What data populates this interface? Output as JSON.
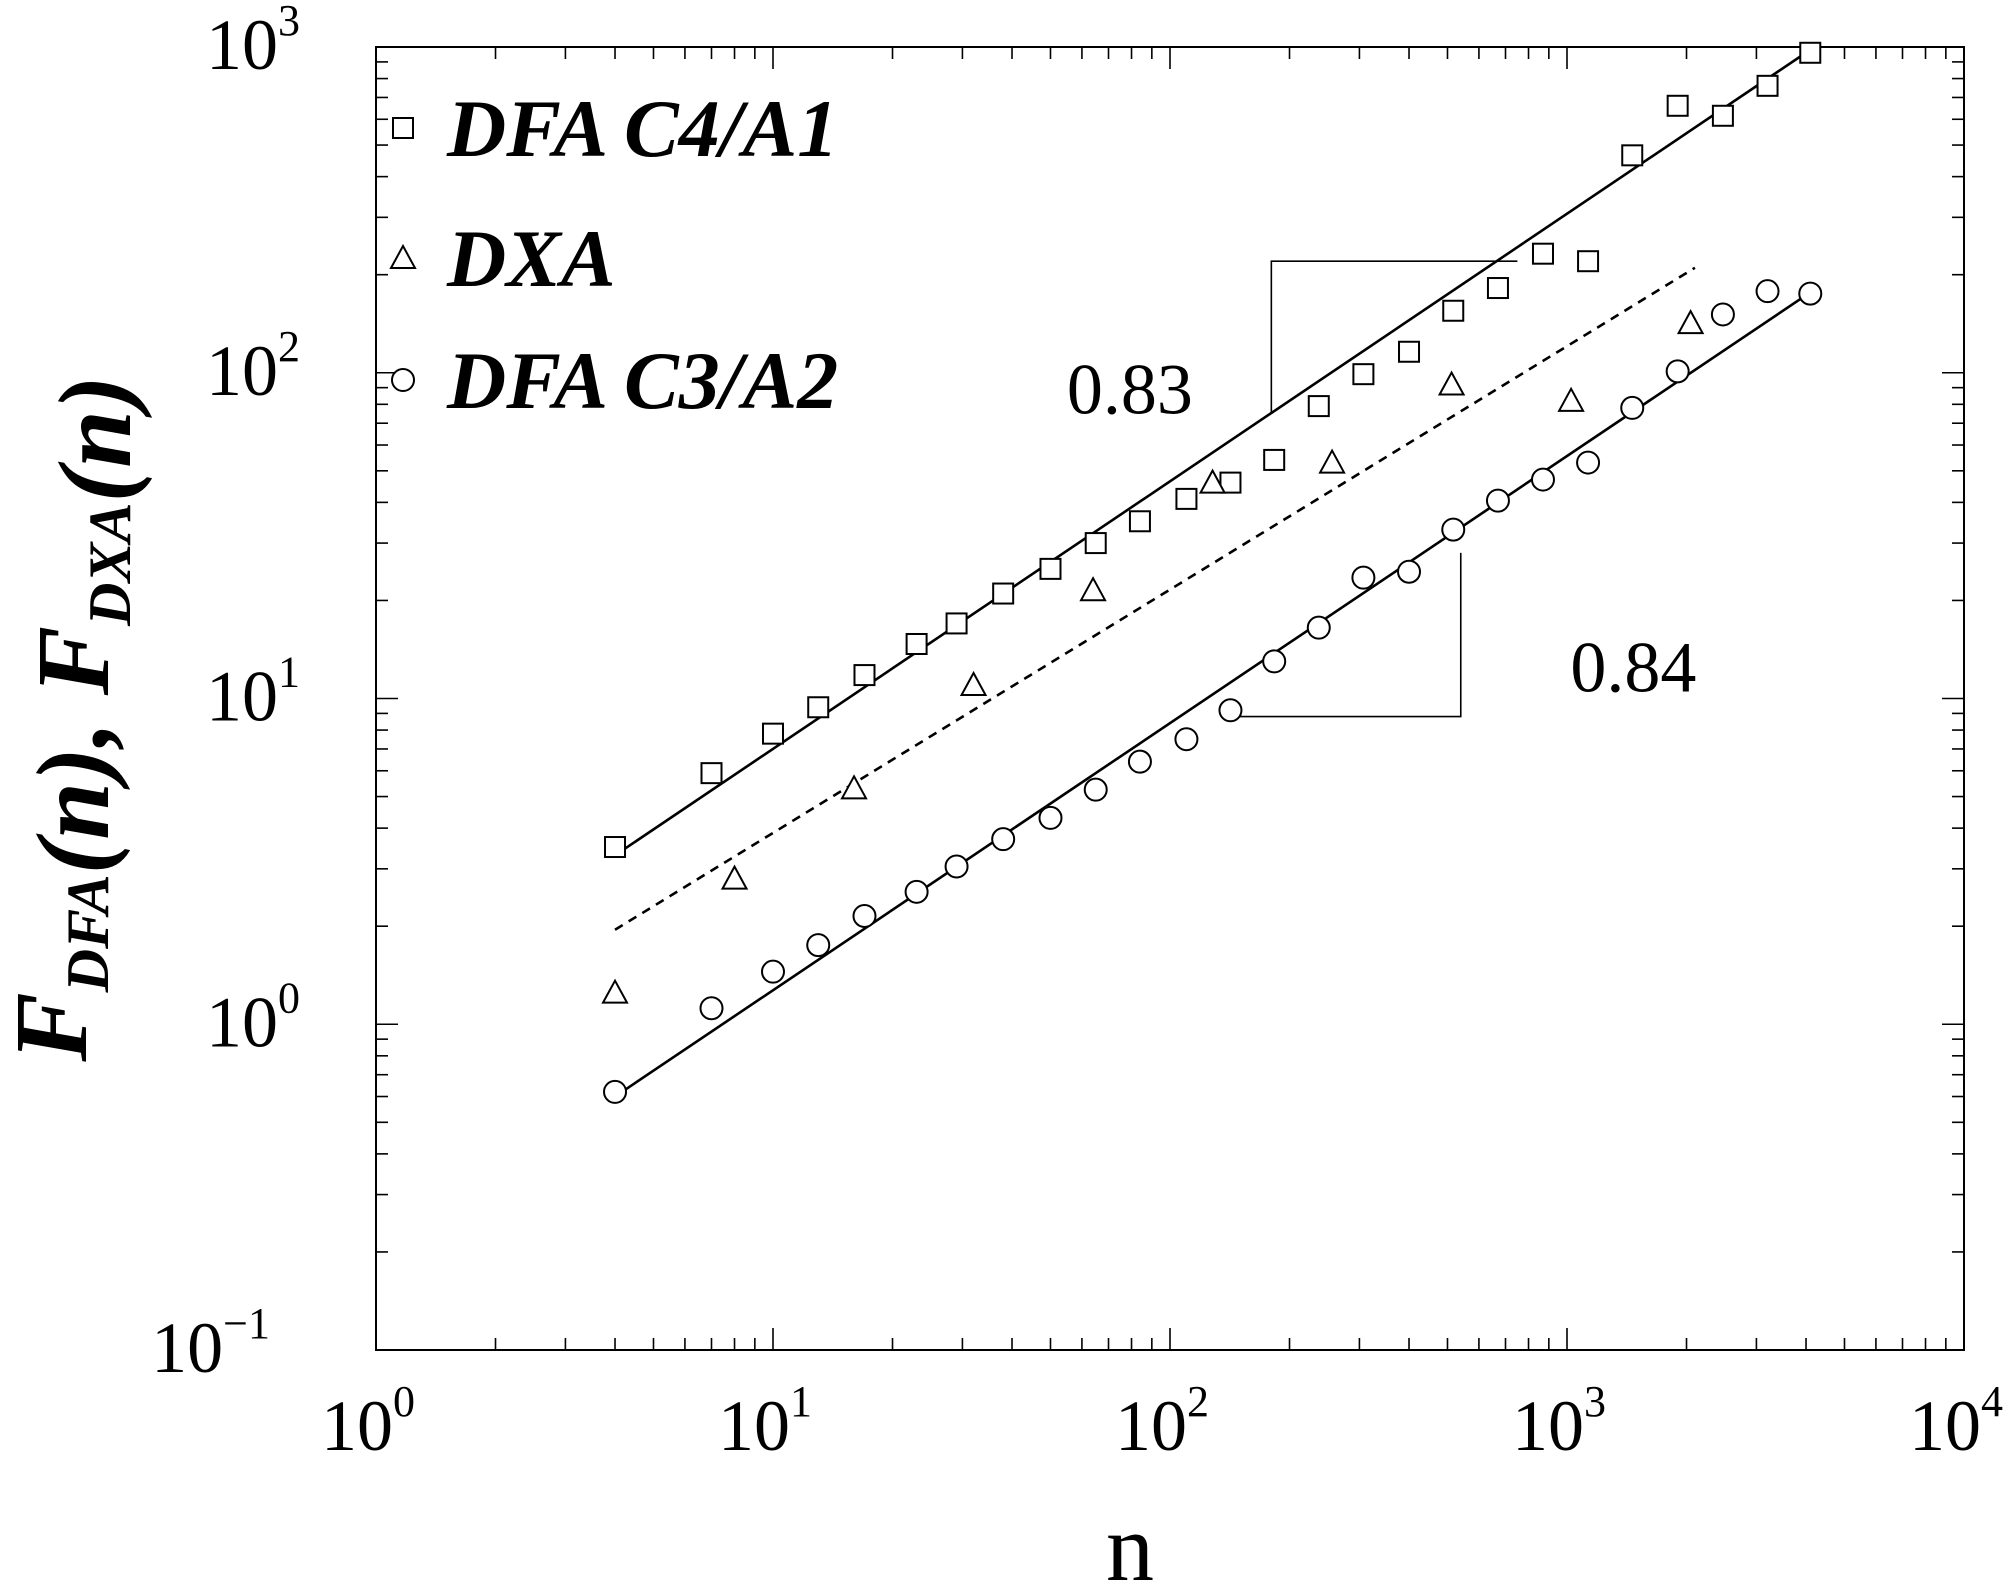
{
  "chart_data": {
    "type": "scatter",
    "xscale": "log",
    "yscale": "log",
    "xlim": [
      1,
      10000
    ],
    "ylim": [
      0.1,
      1000
    ],
    "xlabel": "n",
    "ylabel": {
      "parts": [
        {
          "text": "F",
          "sub": "DFA"
        },
        {
          "text": "(n), "
        },
        {
          "text": "F",
          "sub": "DXA"
        },
        {
          "text": "(n)"
        }
      ]
    },
    "x_ticks": [
      {
        "value": 1,
        "base": "10",
        "exp": "0"
      },
      {
        "value": 10,
        "base": "10",
        "exp": "1"
      },
      {
        "value": 100,
        "base": "10",
        "exp": "2"
      },
      {
        "value": 1000,
        "base": "10",
        "exp": "3"
      },
      {
        "value": 10000,
        "base": "10",
        "exp": "4"
      }
    ],
    "y_ticks": [
      {
        "value": 0.1,
        "base": "10",
        "exp": "−1"
      },
      {
        "value": 1,
        "base": "10",
        "exp": "0"
      },
      {
        "value": 10,
        "base": "10",
        "exp": "1"
      },
      {
        "value": 100,
        "base": "10",
        "exp": "2"
      },
      {
        "value": 1000,
        "base": "10",
        "exp": "3"
      }
    ],
    "legend_position": "top-left",
    "series": [
      {
        "name": "DFA C4/A1",
        "marker": "square",
        "x": [
          4,
          7,
          10,
          13,
          17,
          23,
          29,
          38,
          50,
          65,
          84,
          110,
          142,
          183,
          237,
          307,
          400,
          517,
          670,
          870,
          1130,
          1460,
          1900,
          2470,
          3200,
          4100
        ],
        "y": [
          3.5,
          5.9,
          7.8,
          9.4,
          11.8,
          14.7,
          17,
          21,
          25,
          30,
          35,
          41,
          46,
          54,
          79,
          99,
          116,
          155,
          182,
          232,
          220,
          465,
          660,
          615,
          760,
          960
        ]
      },
      {
        "name": "DXA",
        "marker": "triangle",
        "x": [
          4,
          8,
          16,
          32,
          64,
          128,
          256,
          512,
          1024,
          2048
        ],
        "y": [
          1.25,
          2.8,
          5.3,
          11,
          21.5,
          46,
          53,
          92,
          82,
          142
        ]
      },
      {
        "name": "DFA C3/A2",
        "marker": "circle",
        "x": [
          4,
          7,
          10,
          13,
          17,
          23,
          29,
          38,
          50,
          65,
          84,
          110,
          142,
          183,
          237,
          307,
          400,
          517,
          670,
          870,
          1130,
          1460,
          1900,
          2470,
          3200,
          4100
        ],
        "y": [
          0.62,
          1.12,
          1.45,
          1.75,
          2.15,
          2.55,
          3.05,
          3.7,
          4.3,
          5.25,
          6.4,
          7.5,
          9.2,
          13,
          16.5,
          23.5,
          24.5,
          33,
          40.5,
          47,
          53,
          78,
          101,
          151,
          178,
          175
        ]
      }
    ],
    "fit_lines": [
      {
        "style": "solid",
        "x": [
          4,
          4200
        ],
        "y": [
          3.3,
          1000
        ]
      },
      {
        "style": "dashed",
        "x": [
          4,
          2100
        ],
        "y": [
          1.95,
          210
        ]
      },
      {
        "style": "solid",
        "x": [
          4,
          4200
        ],
        "y": [
          0.6,
          180
        ]
      }
    ],
    "slope_annotations": [
      {
        "label": "0.83"
      },
      {
        "label": "0.84"
      }
    ]
  }
}
